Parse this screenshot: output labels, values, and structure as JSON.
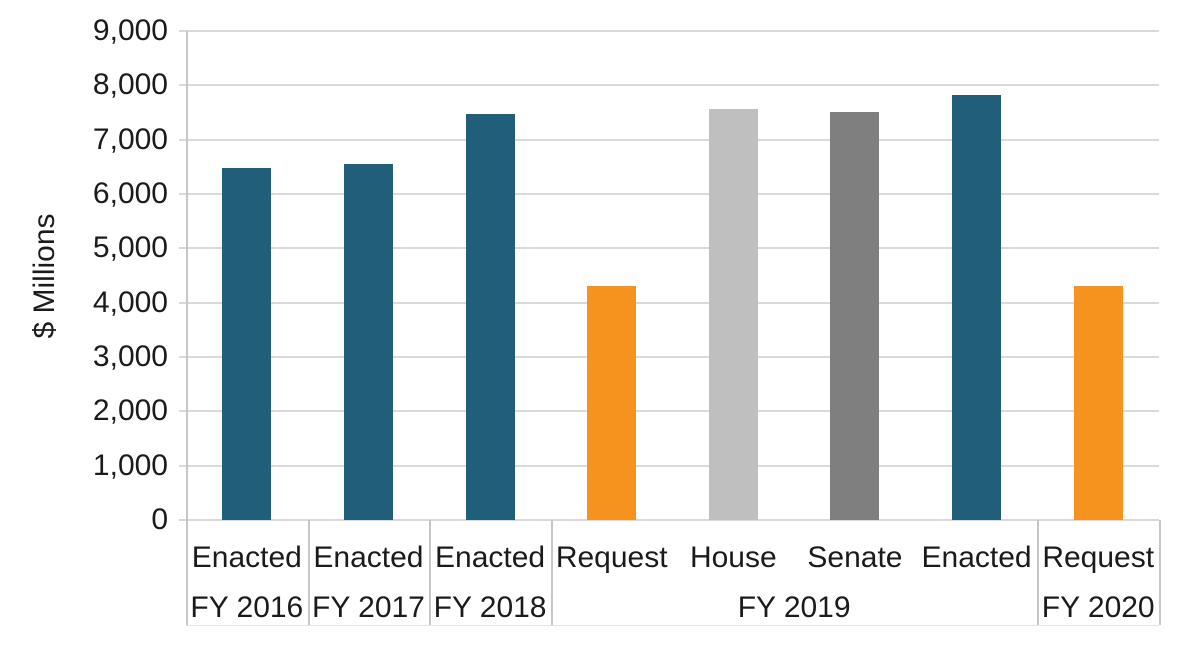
{
  "chart_data": {
    "type": "bar",
    "title": "",
    "ylabel": "$ Millions",
    "ylim": [
      0,
      9000
    ],
    "ytick_interval": 1000,
    "yticks": [
      "0",
      "1,000",
      "2,000",
      "3,000",
      "4,000",
      "5,000",
      "6,000",
      "7,000",
      "8,000",
      "9,000"
    ],
    "grid": "horizontal",
    "legend": "none",
    "bars": [
      {
        "series": "Enacted",
        "group": "FY 2016",
        "value": 6470,
        "color_key": "enacted"
      },
      {
        "series": "Enacted",
        "group": "FY 2017",
        "value": 6550,
        "color_key": "enacted"
      },
      {
        "series": "Enacted",
        "group": "FY 2018",
        "value": 7470,
        "color_key": "enacted"
      },
      {
        "series": "Request",
        "group": "FY 2019",
        "value": 4300,
        "color_key": "request"
      },
      {
        "series": "House",
        "group": "FY 2019",
        "value": 7560,
        "color_key": "house"
      },
      {
        "series": "Senate",
        "group": "FY 2019",
        "value": 7510,
        "color_key": "senate"
      },
      {
        "series": "Enacted",
        "group": "FY 2019",
        "value": 7820,
        "color_key": "enacted"
      },
      {
        "series": "Request",
        "group": "FY 2020",
        "value": 4300,
        "color_key": "request"
      }
    ],
    "groups": [
      {
        "label": "FY 2016",
        "span": 1
      },
      {
        "label": "FY 2017",
        "span": 1
      },
      {
        "label": "FY 2018",
        "span": 1
      },
      {
        "label": "FY 2019",
        "span": 4
      },
      {
        "label": "FY 2020",
        "span": 1
      }
    ],
    "colors": {
      "enacted": "#205e79",
      "request": "#f6921e",
      "house": "#bfbfbf",
      "senate": "#7f7f7f",
      "gridline": "#d9d9d9",
      "axis_line": "#c6c6c6",
      "text": "#1b1b1b"
    }
  }
}
